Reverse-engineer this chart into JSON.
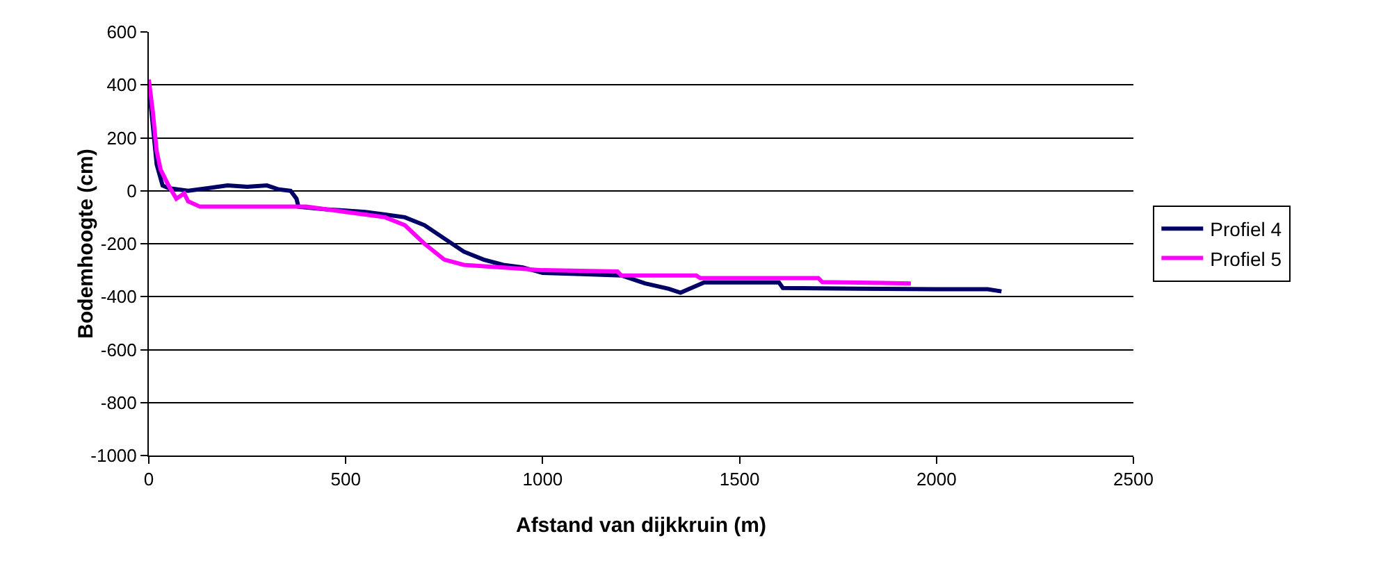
{
  "chart_data": {
    "type": "line",
    "xlabel": "Afstand van dijkkruin (m)",
    "ylabel": "Bodemhoogte (cm)",
    "xlim": [
      0,
      2500
    ],
    "xticks": [
      0,
      500,
      1000,
      1500,
      2000,
      2500
    ],
    "ylim": [
      -1000,
      600
    ],
    "yticks": [
      -1000,
      -800,
      -600,
      -400,
      -200,
      0,
      200,
      400,
      600
    ],
    "grid": "y",
    "legend": "right",
    "marker": "none",
    "line_style": "solid",
    "series": [
      {
        "name": "Profiel 4",
        "color": "#000066",
        "x": [
          0,
          10,
          20,
          35,
          50,
          100,
          150,
          200,
          250,
          300,
          330,
          360,
          375,
          380,
          450,
          500,
          550,
          600,
          650,
          700,
          750,
          800,
          850,
          900,
          950,
          1000,
          1100,
          1200,
          1260,
          1320,
          1350,
          1410,
          1600,
          1610,
          1800,
          2000,
          2130,
          2165
        ],
        "values": [
          400,
          250,
          100,
          20,
          10,
          0,
          10,
          20,
          15,
          20,
          5,
          0,
          -30,
          -60,
          -70,
          -75,
          -80,
          -90,
          -100,
          -130,
          -180,
          -230,
          -260,
          -280,
          -290,
          -310,
          -315,
          -320,
          -350,
          -370,
          -385,
          -346,
          -346,
          -367,
          -370,
          -372,
          -372,
          -380
        ]
      },
      {
        "name": "Profiel 5",
        "color": "#ff00ff",
        "x": [
          0,
          10,
          20,
          30,
          50,
          70,
          90,
          100,
          130,
          200,
          300,
          400,
          500,
          550,
          600,
          650,
          700,
          750,
          800,
          900,
          1000,
          1190,
          1200,
          1390,
          1400,
          1700,
          1710,
          1935
        ],
        "values": [
          420,
          300,
          150,
          80,
          20,
          -30,
          -10,
          -40,
          -60,
          -60,
          -60,
          -60,
          -80,
          -90,
          -100,
          -130,
          -200,
          -260,
          -280,
          -290,
          -300,
          -305,
          -320,
          -320,
          -330,
          -330,
          -345,
          -350
        ]
      }
    ]
  }
}
